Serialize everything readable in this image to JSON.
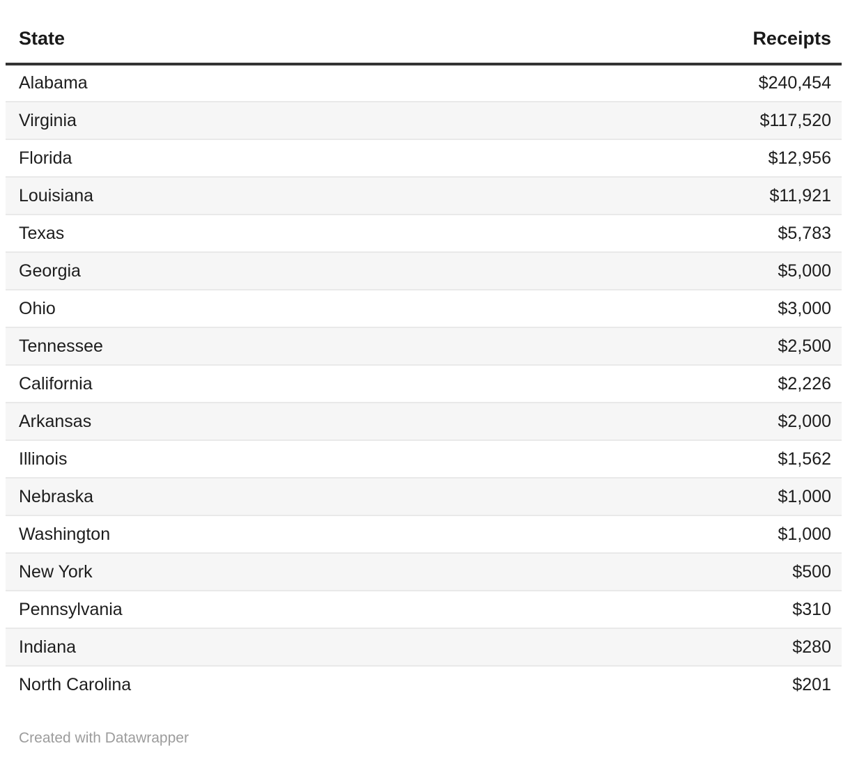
{
  "table": {
    "columns": {
      "state": "State",
      "receipts": "Receipts"
    },
    "rows": [
      {
        "state": "Alabama",
        "receipts": "$240,454"
      },
      {
        "state": "Virginia",
        "receipts": "$117,520"
      },
      {
        "state": "Florida",
        "receipts": "$12,956"
      },
      {
        "state": "Louisiana",
        "receipts": "$11,921"
      },
      {
        "state": "Texas",
        "receipts": "$5,783"
      },
      {
        "state": "Georgia",
        "receipts": "$5,000"
      },
      {
        "state": "Ohio",
        "receipts": "$3,000"
      },
      {
        "state": "Tennessee",
        "receipts": "$2,500"
      },
      {
        "state": "California",
        "receipts": "$2,226"
      },
      {
        "state": "Arkansas",
        "receipts": "$2,000"
      },
      {
        "state": "Illinois",
        "receipts": "$1,562"
      },
      {
        "state": "Nebraska",
        "receipts": "$1,000"
      },
      {
        "state": "Washington",
        "receipts": "$1,000"
      },
      {
        "state": "New York",
        "receipts": "$500"
      },
      {
        "state": "Pennsylvania",
        "receipts": "$310"
      },
      {
        "state": "Indiana",
        "receipts": "$280"
      },
      {
        "state": "North Carolina",
        "receipts": "$201"
      }
    ]
  },
  "footer": {
    "credit": "Created with Datawrapper"
  },
  "colors": {
    "header_rule": "#333333",
    "stripe": "#f6f6f6",
    "row_divider": "#e9e9e9",
    "text": "#1d1d1d",
    "footer_text": "#9c9c9c",
    "background": "#ffffff"
  },
  "chart_data": {
    "type": "table",
    "title": "",
    "columns": [
      "State",
      "Receipts"
    ],
    "rows": [
      [
        "Alabama",
        "$240,454"
      ],
      [
        "Virginia",
        "$117,520"
      ],
      [
        "Florida",
        "$12,956"
      ],
      [
        "Louisiana",
        "$11,921"
      ],
      [
        "Texas",
        "$5,783"
      ],
      [
        "Georgia",
        "$5,000"
      ],
      [
        "Ohio",
        "$3,000"
      ],
      [
        "Tennessee",
        "$2,500"
      ],
      [
        "California",
        "$2,226"
      ],
      [
        "Arkansas",
        "$2,000"
      ],
      [
        "Illinois",
        "$1,562"
      ],
      [
        "Nebraska",
        "$1,000"
      ],
      [
        "Washington",
        "$1,000"
      ],
      [
        "New York",
        "$500"
      ],
      [
        "Pennsylvania",
        "$310"
      ],
      [
        "Indiana",
        "$280"
      ],
      [
        "North Carolina",
        "$201"
      ]
    ],
    "values_numeric": [
      240454,
      117520,
      12956,
      11921,
      5783,
      5000,
      3000,
      2500,
      2226,
      2000,
      1562,
      1000,
      1000,
      500,
      310,
      280,
      201
    ],
    "layout_hints": {
      "zebra_striping": true,
      "first_row_background": "white",
      "value_alignment": "right",
      "header_alignment": {
        "state": "left",
        "receipts": "right"
      }
    },
    "credit": "Created with Datawrapper"
  }
}
